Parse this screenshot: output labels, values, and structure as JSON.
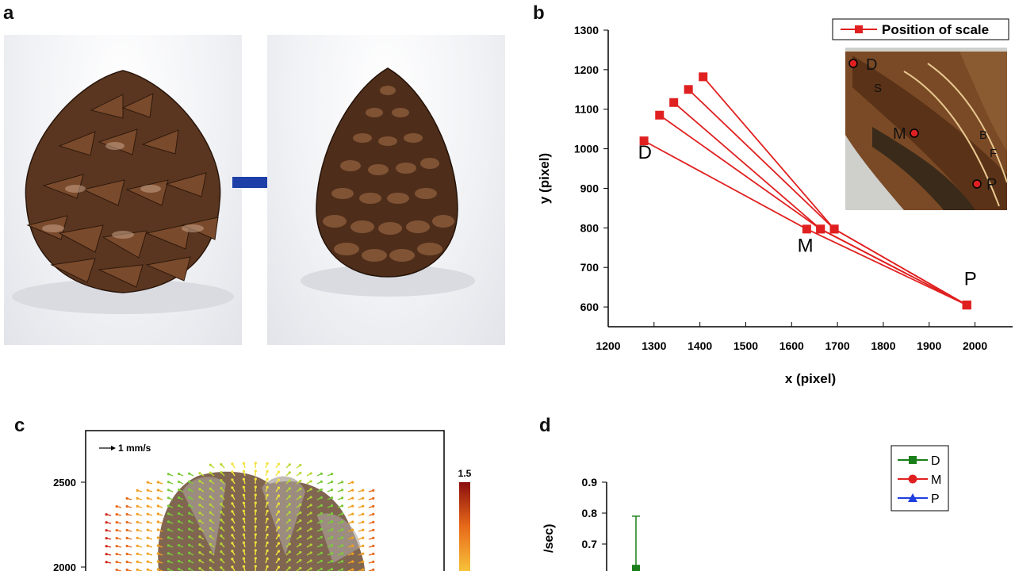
{
  "panels": {
    "a": {
      "letter": "a",
      "arrow_color": "#1f3fa8"
    },
    "b": {
      "letter": "b"
    },
    "c": {
      "letter": "c",
      "velocity_scale_label": "1 mm/s",
      "colorbar_max": "1.5",
      "y_ticks": [
        "2500",
        "2000"
      ]
    },
    "d": {
      "letter": "d",
      "y_ticks": [
        "0.9",
        "0.8",
        "0.7"
      ],
      "ylabel_fragment": "/sec)"
    }
  },
  "chart_data": [
    {
      "type": "line",
      "panel": "b",
      "xlabel": "x (pixel)",
      "ylabel": "y (pixel)",
      "xlim": [
        1200,
        2000
      ],
      "ylim": [
        550,
        1300
      ],
      "x_ticks": [
        1200,
        1300,
        1400,
        1500,
        1600,
        1700,
        1800,
        1900,
        2000
      ],
      "y_ticks": [
        600,
        700,
        800,
        900,
        1000,
        1100,
        1200,
        1300
      ],
      "grid": false,
      "legend_position": "top-right",
      "legend_label": "Position of scale",
      "series_color": "#e02020",
      "series": [
        {
          "x": [
            1278,
            1633,
            1982
          ],
          "y": [
            1020,
            797,
            605
          ]
        },
        {
          "x": [
            1312,
            1663,
            1982
          ],
          "y": [
            1085,
            797,
            605
          ]
        },
        {
          "x": [
            1343,
            1663,
            1982
          ],
          "y": [
            1117,
            797,
            605
          ]
        },
        {
          "x": [
            1375,
            1693,
            1982
          ],
          "y": [
            1150,
            797,
            605
          ]
        },
        {
          "x": [
            1407,
            1693,
            1982
          ],
          "y": [
            1182,
            797,
            605
          ]
        }
      ],
      "annotations": [
        {
          "text": "D",
          "x": 1280,
          "y": 975
        },
        {
          "text": "M",
          "x": 1630,
          "y": 740
        },
        {
          "text": "P",
          "x": 1990,
          "y": 655
        }
      ],
      "inset_labels": [
        "D",
        "S",
        "M",
        "B",
        "F",
        "P"
      ]
    },
    {
      "type": "line",
      "panel": "d",
      "y_ticks": [
        0.7,
        0.8,
        0.9
      ],
      "legend": [
        {
          "name": "D",
          "color": "#1a7f1a",
          "marker": "square"
        },
        {
          "name": "M",
          "color": "#e02020",
          "marker": "circle"
        },
        {
          "name": "P",
          "color": "#1f3fe0",
          "marker": "triangle"
        }
      ],
      "series": [
        {
          "name": "D",
          "points": [
            {
              "value": 0.62,
              "error_upper": 0.79
            }
          ]
        }
      ]
    }
  ]
}
